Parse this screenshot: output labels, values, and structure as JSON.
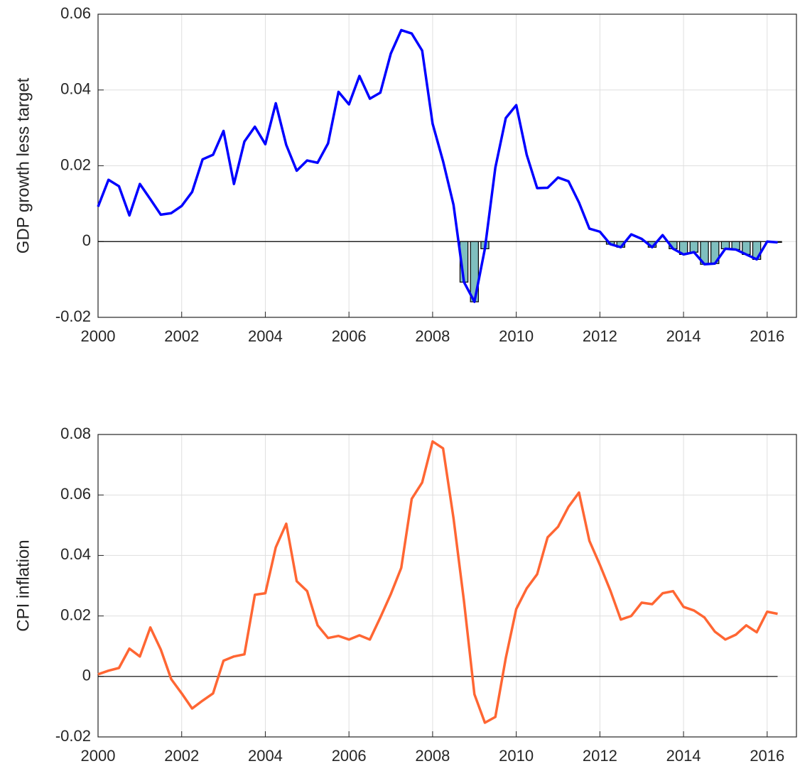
{
  "chart_data": [
    {
      "type": "line",
      "ylabel": "GDP growth less target",
      "x": [
        2000,
        2000.25,
        2000.5,
        2000.75,
        2001,
        2001.25,
        2001.5,
        2001.75,
        2002,
        2002.25,
        2002.5,
        2002.75,
        2003,
        2003.25,
        2003.5,
        2003.75,
        2004,
        2004.25,
        2004.5,
        2004.75,
        2005,
        2005.25,
        2005.5,
        2005.75,
        2006,
        2006.25,
        2006.5,
        2006.75,
        2007,
        2007.25,
        2007.5,
        2007.75,
        2008,
        2008.25,
        2008.5,
        2008.75,
        2009,
        2009.25,
        2009.5,
        2009.75,
        2010,
        2010.25,
        2010.5,
        2010.75,
        2011,
        2011.25,
        2011.5,
        2011.75,
        2012,
        2012.25,
        2012.5,
        2012.75,
        2013,
        2013.25,
        2013.5,
        2013.75,
        2014,
        2014.25,
        2014.5,
        2014.75,
        2015,
        2015.25,
        2015.5,
        2015.75,
        2016,
        2016.25
      ],
      "series": [
        {
          "type": "line",
          "color": "#0000ff",
          "values": [
            0.0092,
            0.0163,
            0.0146,
            0.0069,
            0.0152,
            0.0112,
            0.0071,
            0.0075,
            0.0094,
            0.0131,
            0.0217,
            0.0229,
            0.0292,
            0.0152,
            0.0264,
            0.0303,
            0.0257,
            0.0365,
            0.0255,
            0.0187,
            0.0214,
            0.0208,
            0.0259,
            0.0395,
            0.0362,
            0.0437,
            0.0377,
            0.0393,
            0.0496,
            0.0558,
            0.0549,
            0.0504,
            0.0311,
            0.0212,
            0.0097,
            -0.0107,
            -0.0159,
            -0.0019,
            0.0195,
            0.0326,
            0.036,
            0.0229,
            0.0141,
            0.0142,
            0.0169,
            0.0159,
            0.0103,
            0.0034,
            0.0026,
            -0.0007,
            -0.0015,
            0.0019,
            0.0007,
            -0.0015,
            0.0017,
            -0.0019,
            -0.0034,
            -0.0028,
            -0.006,
            -0.0058,
            -0.0019,
            -0.0021,
            -0.0034,
            -0.0047,
            0,
            -0.0002
          ]
        },
        {
          "type": "bar",
          "color": "#7fbfbf",
          "values": [
            null,
            null,
            null,
            null,
            null,
            null,
            null,
            null,
            null,
            null,
            null,
            null,
            null,
            null,
            null,
            null,
            null,
            null,
            null,
            null,
            null,
            null,
            null,
            null,
            null,
            null,
            null,
            null,
            null,
            null,
            null,
            null,
            null,
            null,
            null,
            -0.0107,
            -0.0159,
            -0.0019,
            null,
            null,
            null,
            null,
            null,
            null,
            null,
            null,
            null,
            null,
            null,
            -0.0007,
            -0.0015,
            null,
            null,
            -0.0015,
            null,
            -0.0019,
            -0.0034,
            -0.0028,
            -0.006,
            -0.0058,
            -0.0019,
            -0.0021,
            -0.0034,
            -0.0047,
            null,
            -0.0002
          ]
        }
      ],
      "xlim": [
        2000,
        2016.7
      ],
      "xticks": [
        2000,
        2002,
        2004,
        2006,
        2008,
        2010,
        2012,
        2014,
        2016
      ],
      "ylim": [
        -0.02,
        0.06
      ],
      "yticks": [
        -0.02,
        0,
        0.02,
        0.04,
        0.06
      ],
      "grid": true,
      "zero_line": true
    },
    {
      "type": "line",
      "ylabel": "CPI inflation",
      "x": [
        2000,
        2000.25,
        2000.5,
        2000.75,
        2001,
        2001.25,
        2001.5,
        2001.75,
        2002,
        2002.25,
        2002.5,
        2002.75,
        2003,
        2003.25,
        2003.5,
        2003.75,
        2004,
        2004.25,
        2004.5,
        2004.75,
        2005,
        2005.25,
        2005.5,
        2005.75,
        2006,
        2006.25,
        2006.5,
        2006.75,
        2007,
        2007.25,
        2007.5,
        2007.75,
        2008,
        2008.25,
        2008.5,
        2008.75,
        2009,
        2009.25,
        2009.5,
        2009.75,
        2010,
        2010.25,
        2010.5,
        2010.75,
        2011,
        2011.25,
        2011.5,
        2011.75,
        2012,
        2012.25,
        2012.5,
        2012.75,
        2013,
        2013.25,
        2013.5,
        2013.75,
        2014,
        2014.25,
        2014.5,
        2014.75,
        2015,
        2015.25,
        2015.5,
        2015.75,
        2016,
        2016.25
      ],
      "series": [
        {
          "type": "line",
          "color": "#ff6633",
          "values": [
            0.0007,
            0.0019,
            0.0028,
            0.0092,
            0.0066,
            0.0162,
            0.0089,
            -0.0009,
            -0.0056,
            -0.0106,
            -0.008,
            -0.0056,
            0.0052,
            0.0066,
            0.0073,
            0.027,
            0.0275,
            0.0427,
            0.0505,
            0.0315,
            0.0282,
            0.0169,
            0.0127,
            0.0134,
            0.0122,
            0.0136,
            0.0122,
            0.0195,
            0.0272,
            0.0359,
            0.0587,
            0.0641,
            0.0777,
            0.0754,
            0.0523,
            0.0249,
            -0.0059,
            -0.0153,
            -0.0134,
            0.0061,
            0.0223,
            0.0291,
            0.0338,
            0.046,
            0.0495,
            0.0561,
            0.0608,
            0.0448,
            0.0369,
            0.0284,
            0.0188,
            0.02,
            0.0244,
            0.0239,
            0.0275,
            0.0282,
            0.023,
            0.0218,
            0.0195,
            0.0148,
            0.0122,
            0.0138,
            0.0169,
            0.0146,
            0.0214,
            0.0207
          ]
        }
      ],
      "xlim": [
        2000,
        2016.7
      ],
      "xticks": [
        2000,
        2002,
        2004,
        2006,
        2008,
        2010,
        2012,
        2014,
        2016
      ],
      "ylim": [
        -0.02,
        0.08
      ],
      "yticks": [
        -0.02,
        0,
        0.02,
        0.04,
        0.06,
        0.08
      ],
      "grid": true,
      "zero_line": true
    }
  ]
}
